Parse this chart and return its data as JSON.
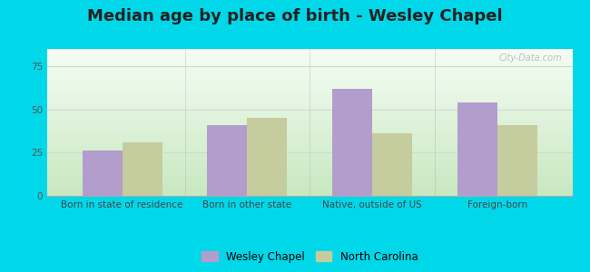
{
  "title": "Median age by place of birth - Wesley Chapel",
  "categories": [
    "Born in state of residence",
    "Born in other state",
    "Native, outside of US",
    "Foreign-born"
  ],
  "wesley_chapel": [
    26,
    41,
    62,
    54
  ],
  "north_carolina": [
    31,
    45,
    36,
    41
  ],
  "bar_color_wc": "#b39dcc",
  "bar_color_nc": "#c5cc9d",
  "background_outer": "#00d8ea",
  "ylim": [
    0,
    85
  ],
  "yticks": [
    0,
    25,
    50,
    75
  ],
  "legend_wc": "Wesley Chapel",
  "legend_nc": "North Carolina",
  "title_fontsize": 13,
  "axis_label_fontsize": 7.5,
  "legend_fontsize": 8.5,
  "bar_width": 0.32,
  "watermark": "City-Data.com",
  "grid_color": "#ccddcc",
  "grad_top": "#f5fdf5",
  "grad_bottom": "#c8e8c0"
}
